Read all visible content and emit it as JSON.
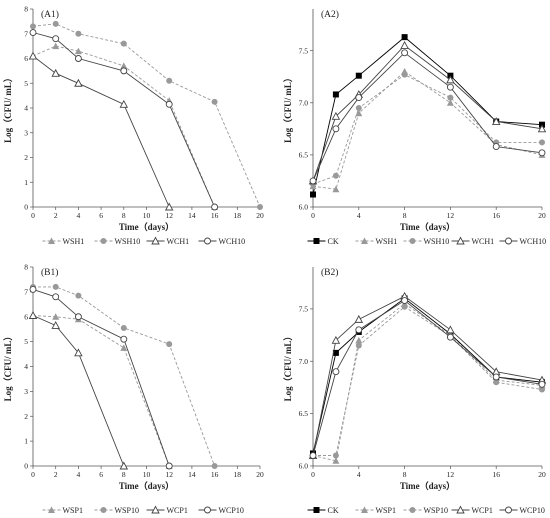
{
  "chart_data": [
    {
      "label": "(A1)",
      "type": "line",
      "xlabel": "Time（days）",
      "ylabel": "Log（CFU/ mL）",
      "x": [
        0,
        2,
        4,
        8,
        12,
        16,
        20
      ],
      "xticks": [
        "0",
        "2",
        "4",
        "6",
        "8",
        "10",
        "12",
        "14",
        "16",
        "18",
        "20"
      ],
      "yticks": [
        "0",
        "1",
        "2",
        "3",
        "4",
        "5",
        "6",
        "7",
        "8"
      ],
      "xlim": [
        0,
        20
      ],
      "ylim": [
        0,
        8
      ],
      "legend_position": "bottom",
      "series": [
        {
          "name": "WSH1",
          "color": "#999999",
          "marker": "triangle-filled",
          "dash": true,
          "points": [
            [
              0,
              6.1
            ],
            [
              2,
              6.5
            ],
            [
              4,
              6.3
            ],
            [
              8,
              5.7
            ],
            [
              12,
              4.3
            ],
            [
              16,
              0
            ]
          ]
        },
        {
          "name": "WSH10",
          "color": "#999999",
          "marker": "circle-filled",
          "dash": true,
          "points": [
            [
              0,
              7.3
            ],
            [
              2,
              7.4
            ],
            [
              4,
              7.0
            ],
            [
              8,
              6.6
            ],
            [
              12,
              5.1
            ],
            [
              16,
              4.25
            ],
            [
              20,
              0
            ]
          ]
        },
        {
          "name": "WCH1",
          "color": "#444444",
          "marker": "triangle-open",
          "dash": false,
          "points": [
            [
              0,
              6.1
            ],
            [
              2,
              5.4
            ],
            [
              4,
              5.0
            ],
            [
              8,
              4.15
            ],
            [
              12,
              0
            ]
          ]
        },
        {
          "name": "WCH10",
          "color": "#444444",
          "marker": "circle-open",
          "dash": false,
          "points": [
            [
              0,
              7.05
            ],
            [
              2,
              6.8
            ],
            [
              4,
              6.0
            ],
            [
              8,
              5.5
            ],
            [
              12,
              4.15
            ],
            [
              16,
              0
            ]
          ]
        }
      ]
    },
    {
      "label": "(A2)",
      "type": "line",
      "xlabel": "Time（days）",
      "ylabel": "Log（CFU/ mL）",
      "x": [
        0,
        2,
        4,
        8,
        12,
        16,
        20
      ],
      "xticks": [
        "0",
        "4",
        "8",
        "12",
        "16",
        "20"
      ],
      "yticks": [
        "6.0",
        "6.5",
        "7.0",
        "7.5"
      ],
      "xlim": [
        0,
        20
      ],
      "ylim": [
        6.0,
        7.9
      ],
      "legend_position": "bottom",
      "series": [
        {
          "name": "CK",
          "color": "#000000",
          "marker": "square-filled",
          "dash": false,
          "points": [
            [
              0,
              6.12
            ],
            [
              2,
              7.08
            ],
            [
              4,
              7.26
            ],
            [
              8,
              7.63
            ],
            [
              12,
              7.26
            ],
            [
              16,
              6.82
            ],
            [
              20,
              6.79
            ]
          ]
        },
        {
          "name": "WSH1",
          "color": "#999999",
          "marker": "triangle-filled",
          "dash": true,
          "points": [
            [
              0,
              6.2
            ],
            [
              2,
              6.17
            ],
            [
              4,
              6.9
            ],
            [
              8,
              7.3
            ],
            [
              12,
              7.0
            ],
            [
              16,
              6.6
            ],
            [
              20,
              6.5
            ]
          ]
        },
        {
          "name": "WSH10",
          "color": "#999999",
          "marker": "circle-filled",
          "dash": true,
          "points": [
            [
              0,
              6.22
            ],
            [
              2,
              6.3
            ],
            [
              4,
              6.95
            ],
            [
              8,
              7.27
            ],
            [
              12,
              7.05
            ],
            [
              16,
              6.62
            ],
            [
              20,
              6.62
            ]
          ]
        },
        {
          "name": "WCH1",
          "color": "#444444",
          "marker": "triangle-open",
          "dash": false,
          "points": [
            [
              0,
              6.25
            ],
            [
              2,
              6.87
            ],
            [
              4,
              7.08
            ],
            [
              8,
              7.55
            ],
            [
              12,
              7.22
            ],
            [
              16,
              6.82
            ],
            [
              20,
              6.75
            ]
          ]
        },
        {
          "name": "WCH10",
          "color": "#444444",
          "marker": "circle-open",
          "dash": false,
          "points": [
            [
              0,
              6.25
            ],
            [
              2,
              6.75
            ],
            [
              4,
              7.05
            ],
            [
              8,
              7.48
            ],
            [
              12,
              7.15
            ],
            [
              16,
              6.58
            ],
            [
              20,
              6.52
            ]
          ]
        }
      ]
    },
    {
      "label": "(B1)",
      "type": "line",
      "xlabel": "Time（days）",
      "ylabel": "Log（CFU/ mL）",
      "x": [
        0,
        2,
        4,
        8,
        12,
        16,
        20
      ],
      "xticks": [
        "0",
        "2",
        "4",
        "6",
        "8",
        "10",
        "12",
        "14",
        "16",
        "18",
        "20"
      ],
      "yticks": [
        "0",
        "1",
        "2",
        "3",
        "4",
        "5",
        "6",
        "7",
        "8"
      ],
      "xlim": [
        0,
        20
      ],
      "ylim": [
        0,
        8
      ],
      "legend_position": "bottom",
      "series": [
        {
          "name": "WSP1",
          "color": "#999999",
          "marker": "triangle-filled",
          "dash": true,
          "points": [
            [
              0,
              6.05
            ],
            [
              2,
              6.0
            ],
            [
              4,
              5.9
            ],
            [
              8,
              4.75
            ],
            [
              12,
              0
            ]
          ]
        },
        {
          "name": "WSP10",
          "color": "#999999",
          "marker": "circle-filled",
          "dash": true,
          "points": [
            [
              0,
              7.2
            ],
            [
              2,
              7.2
            ],
            [
              4,
              6.85
            ],
            [
              8,
              5.55
            ],
            [
              12,
              4.9
            ],
            [
              16,
              0
            ]
          ]
        },
        {
          "name": "WCP1",
          "color": "#444444",
          "marker": "triangle-open",
          "dash": false,
          "points": [
            [
              0,
              6.05
            ],
            [
              2,
              5.65
            ],
            [
              4,
              4.55
            ],
            [
              8,
              0
            ]
          ]
        },
        {
          "name": "WCP10",
          "color": "#444444",
          "marker": "circle-open",
          "dash": false,
          "points": [
            [
              0,
              7.1
            ],
            [
              2,
              6.8
            ],
            [
              4,
              6.0
            ],
            [
              8,
              5.1
            ],
            [
              12,
              0
            ]
          ]
        }
      ]
    },
    {
      "label": "(B2)",
      "type": "line",
      "xlabel": "Time（days）",
      "ylabel": "Log（CFU/ mL）",
      "x": [
        0,
        2,
        4,
        8,
        12,
        16,
        20
      ],
      "xticks": [
        "0",
        "4",
        "8",
        "12",
        "16",
        "20"
      ],
      "yticks": [
        "6.0",
        "6.5",
        "7.0",
        "7.5"
      ],
      "xlim": [
        0,
        20
      ],
      "ylim": [
        6.0,
        7.9
      ],
      "legend_position": "bottom",
      "series": [
        {
          "name": "CK",
          "color": "#000000",
          "marker": "square-filled",
          "dash": false,
          "points": [
            [
              0,
              6.12
            ],
            [
              2,
              7.08
            ],
            [
              4,
              7.28
            ],
            [
              8,
              7.6
            ],
            [
              12,
              7.26
            ],
            [
              16,
              6.85
            ],
            [
              20,
              6.8
            ]
          ]
        },
        {
          "name": "WSP1",
          "color": "#999999",
          "marker": "triangle-filled",
          "dash": true,
          "points": [
            [
              0,
              6.1
            ],
            [
              2,
              6.05
            ],
            [
              4,
              7.2
            ],
            [
              8,
              7.55
            ],
            [
              12,
              7.25
            ],
            [
              16,
              6.82
            ],
            [
              20,
              6.77
            ]
          ]
        },
        {
          "name": "WSP10",
          "color": "#999999",
          "marker": "circle-filled",
          "dash": true,
          "points": [
            [
              0,
              6.1
            ],
            [
              2,
              6.1
            ],
            [
              4,
              7.15
            ],
            [
              8,
              7.52
            ],
            [
              12,
              7.24
            ],
            [
              16,
              6.8
            ],
            [
              20,
              6.73
            ]
          ]
        },
        {
          "name": "WCP1",
          "color": "#444444",
          "marker": "triangle-open",
          "dash": false,
          "points": [
            [
              0,
              6.1
            ],
            [
              2,
              7.2
            ],
            [
              4,
              7.4
            ],
            [
              8,
              7.62
            ],
            [
              12,
              7.3
            ],
            [
              16,
              6.9
            ],
            [
              20,
              6.82
            ]
          ]
        },
        {
          "name": "WCP10",
          "color": "#444444",
          "marker": "circle-open",
          "dash": false,
          "points": [
            [
              0,
              6.1
            ],
            [
              2,
              6.9
            ],
            [
              4,
              7.3
            ],
            [
              8,
              7.58
            ],
            [
              12,
              7.23
            ],
            [
              16,
              6.85
            ],
            [
              20,
              6.78
            ]
          ]
        }
      ]
    }
  ]
}
